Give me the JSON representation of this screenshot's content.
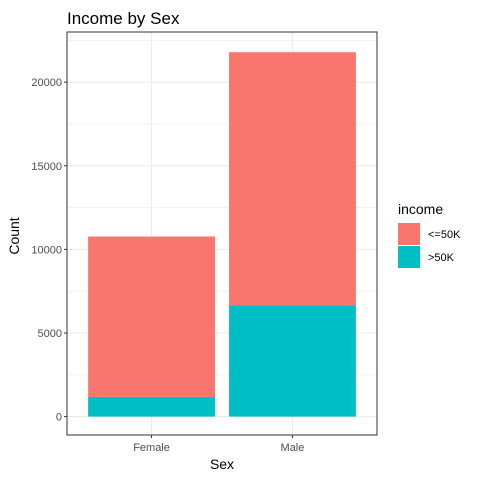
{
  "chart_data": {
    "type": "bar",
    "stacked": true,
    "title": "Income by Sex",
    "xlabel": "Sex",
    "ylabel": "Count",
    "categories": [
      "Female",
      "Male"
    ],
    "series": [
      {
        "name": "<=50K",
        "color": "#F8766D",
        "values": [
          9592,
          15128
        ]
      },
      {
        "name": ">50K",
        "color": "#00BFC4",
        "values": [
          1179,
          6662
        ]
      }
    ],
    "ylim": [
      -1100,
      23000
    ],
    "yticks": [
      0,
      5000,
      10000,
      15000,
      20000
    ],
    "grid": true,
    "legend": {
      "title": "income",
      "position": "right"
    }
  }
}
